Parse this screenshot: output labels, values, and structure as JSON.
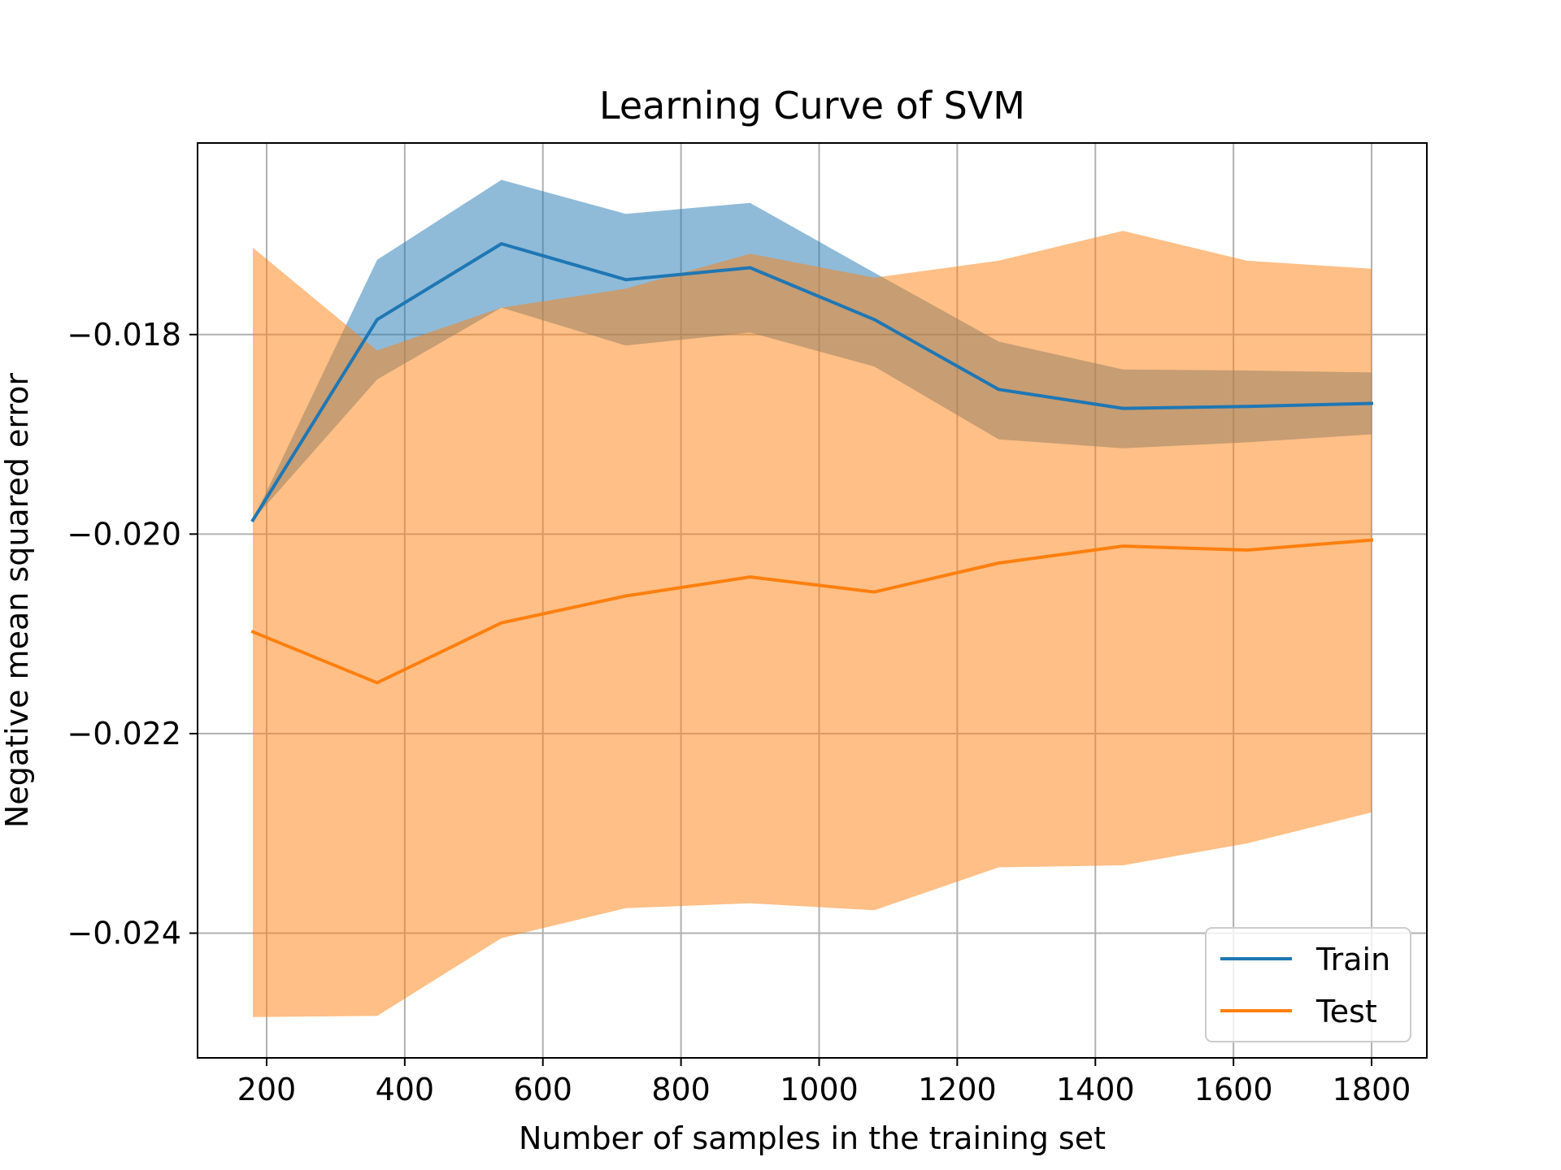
{
  "chart_data": {
    "type": "line",
    "title": "Learning Curve of SVM",
    "xlabel": "Number of samples in the training set",
    "ylabel": "Negative mean squared error",
    "xlim": [
      100,
      1880
    ],
    "ylim": [
      -0.02525,
      -0.01608
    ],
    "xticks": [
      200,
      400,
      600,
      800,
      1000,
      1200,
      1400,
      1600,
      1800
    ],
    "xtick_labels": [
      "200",
      "400",
      "600",
      "800",
      "1000",
      "1200",
      "1400",
      "1600",
      "1800"
    ],
    "yticks": [
      -0.024,
      -0.022,
      -0.02,
      -0.018
    ],
    "ytick_labels": [
      "−0.024",
      "−0.022",
      "−0.020",
      "−0.018"
    ],
    "grid": true,
    "legend_position": "lower-right",
    "series": [
      {
        "name": "Train",
        "color": "#1f77b4",
        "band_color": "#1f77b4",
        "x": [
          180,
          360,
          540,
          720,
          900,
          1080,
          1260,
          1440,
          1620,
          1800
        ],
        "values": [
          -0.01986,
          -0.01785,
          -0.01709,
          -0.01745,
          -0.01733,
          -0.01785,
          -0.01855,
          -0.01874,
          -0.01872,
          -0.01869
        ],
        "upper": [
          -0.01986,
          -0.01725,
          -0.01645,
          -0.01679,
          -0.01668,
          -0.01738,
          -0.01807,
          -0.01835,
          -0.01836,
          -0.01838
        ],
        "lower": [
          -0.01986,
          -0.01845,
          -0.01773,
          -0.01811,
          -0.01798,
          -0.01832,
          -0.01905,
          -0.01914,
          -0.01908,
          -0.019
        ]
      },
      {
        "name": "Test",
        "color": "#ff7f0e",
        "band_color": "#ff7f0e",
        "x": [
          180,
          360,
          540,
          720,
          900,
          1080,
          1260,
          1440,
          1620,
          1800
        ],
        "values": [
          -0.02098,
          -0.02149,
          -0.02089,
          -0.02062,
          -0.02043,
          -0.02058,
          -0.02029,
          -0.02012,
          -0.02016,
          -0.02006
        ],
        "upper": [
          -0.01713,
          -0.01816,
          -0.01773,
          -0.01754,
          -0.01719,
          -0.01743,
          -0.01726,
          -0.01696,
          -0.01726,
          -0.01734
        ],
        "lower": [
          -0.02484,
          -0.02483,
          -0.02405,
          -0.02375,
          -0.0237,
          -0.02377,
          -0.02334,
          -0.02332,
          -0.0231,
          -0.02279
        ]
      }
    ]
  }
}
